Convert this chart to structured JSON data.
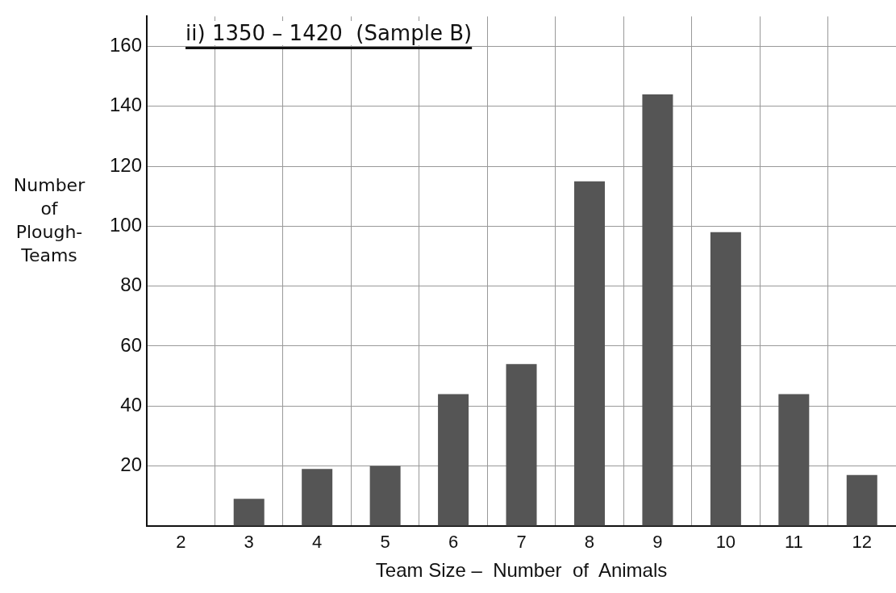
{
  "chart_data": {
    "type": "bar",
    "title": "ii) 1350 – 1420  (Sample B)",
    "xlabel": "Team Size –  Number  of  Animals",
    "ylabel": "Number of Plough-Teams",
    "categories": [
      "2",
      "3",
      "4",
      "5",
      "6",
      "7",
      "8",
      "9",
      "10",
      "11",
      "12"
    ],
    "values": [
      0,
      9,
      19,
      20,
      44,
      54,
      115,
      144,
      98,
      44,
      17
    ],
    "color": "#555555",
    "ylim": [
      0,
      170
    ],
    "yticks": [
      20,
      40,
      60,
      80,
      100,
      120,
      140,
      160
    ],
    "grid": true,
    "legend": false
  }
}
